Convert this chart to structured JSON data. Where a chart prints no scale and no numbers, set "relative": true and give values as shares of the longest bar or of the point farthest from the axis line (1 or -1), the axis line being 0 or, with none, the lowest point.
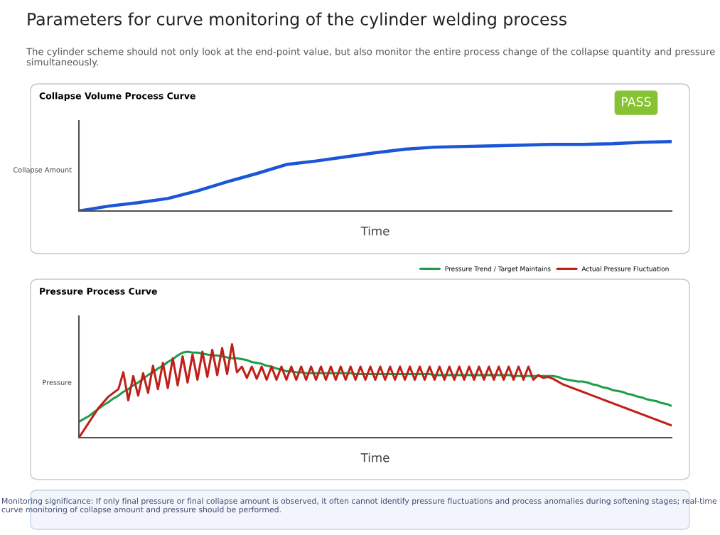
{
  "chart_data": [
    {
      "type": "line",
      "title": "Collapse Volume Process Curve",
      "xlabel": "Time",
      "ylabel": "Collapse Amount",
      "relative": true,
      "legend": false,
      "marker": "none",
      "line_style": "solid",
      "annotations": [
        "Parameters for curve monitoring of the cylinder welding process",
        "The cylinder scheme should not only look at the end-point value, but also monitor the entire process change of the collapse quantity and pressure simultaneously.",
        "PASS"
      ],
      "categories": [
        null,
        null,
        null,
        null,
        null,
        null,
        null,
        null,
        null,
        null,
        null,
        null,
        null,
        null,
        null,
        null,
        null,
        null,
        null,
        null,
        null
      ],
      "series": [
        {
          "color": "#1a56d6",
          "values": [
            0,
            0.07,
            0.12,
            0.18,
            0.29,
            0.42,
            0.54,
            0.67,
            0.72,
            0.78,
            0.84,
            0.89,
            0.92,
            0.93,
            0.94,
            0.95,
            0.96,
            0.96,
            0.97,
            0.99,
            1.0
          ]
        }
      ]
    },
    {
      "type": "line",
      "title": "Pressure Process Curve",
      "xlabel": "Time",
      "ylabel": "Pressure",
      "relative": true,
      "legend": "top right",
      "marker": "none",
      "line_style": "solid",
      "annotations": [
        "Monitoring significance: If only final pressure or final collapse amount is observed, it often cannot identify pressure fluctuations and process anomalies during softening stages; real-time curve monitoring of collapse amount and pressure should be performed."
      ],
      "categories": [
        null,
        null,
        null,
        null,
        null,
        null,
        null,
        null,
        null,
        null,
        null,
        null,
        null,
        null,
        null,
        null,
        null,
        null,
        null,
        null,
        null,
        null,
        null,
        null,
        null,
        null,
        null,
        null,
        null,
        null,
        null,
        null,
        null,
        null,
        null,
        null,
        null,
        null,
        null,
        null,
        null,
        null,
        null,
        null,
        null,
        null,
        null,
        null,
        null,
        null,
        null,
        null,
        null,
        null,
        null,
        null,
        null,
        null,
        null,
        null,
        null,
        null,
        null,
        null,
        null,
        null,
        null,
        null,
        null,
        null,
        null,
        null,
        null,
        null,
        null,
        null,
        null,
        null,
        null,
        null,
        null,
        null,
        null,
        null,
        null,
        null,
        null,
        null,
        null,
        null,
        null,
        null,
        null,
        null,
        null,
        null,
        null,
        null,
        null,
        null,
        null,
        null,
        null,
        null,
        null,
        null,
        null,
        null,
        null,
        null,
        null,
        null,
        null,
        null,
        null,
        null,
        null,
        null,
        null,
        null,
        null
      ],
      "series": [
        {
          "name": "Pressure Trend / Target Maintains",
          "color": "#1e9e4a",
          "values": [
            0.17,
            0.2,
            0.23,
            0.27,
            0.31,
            0.35,
            0.38,
            0.42,
            0.45,
            0.49,
            0.52,
            0.56,
            0.59,
            0.63,
            0.67,
            0.7,
            0.74,
            0.77,
            0.81,
            0.84,
            0.88,
            0.91,
            0.92,
            0.91,
            0.91,
            0.9,
            0.89,
            0.88,
            0.88,
            0.87,
            0.86,
            0.85,
            0.85,
            0.84,
            0.83,
            0.81,
            0.8,
            0.79,
            0.77,
            0.76,
            0.74,
            0.73,
            0.71,
            0.71,
            0.7,
            0.7,
            0.69,
            0.69,
            0.69,
            0.69,
            0.69,
            0.69,
            0.69,
            0.69,
            0.69,
            0.69,
            0.68,
            0.68,
            0.68,
            0.68,
            0.68,
            0.68,
            0.68,
            0.68,
            0.68,
            0.68,
            0.68,
            0.68,
            0.68,
            0.68,
            0.68,
            0.68,
            0.67,
            0.67,
            0.67,
            0.67,
            0.67,
            0.67,
            0.67,
            0.67,
            0.67,
            0.67,
            0.67,
            0.67,
            0.67,
            0.67,
            0.67,
            0.67,
            0.66,
            0.66,
            0.66,
            0.66,
            0.66,
            0.66,
            0.66,
            0.66,
            0.66,
            0.65,
            0.63,
            0.62,
            0.61,
            0.6,
            0.6,
            0.59,
            0.57,
            0.56,
            0.54,
            0.53,
            0.51,
            0.5,
            0.49,
            0.47,
            0.46,
            0.44,
            0.43,
            0.41,
            0.4,
            0.39,
            0.37,
            0.36,
            0.34
          ]
        },
        {
          "name": "Actual Pressure Fluctuation",
          "color": "#c0201a",
          "values": [
            0,
            0.08,
            0.16,
            0.24,
            0.32,
            0.38,
            0.44,
            0.48,
            0.52,
            0.7,
            0.4,
            0.66,
            0.45,
            0.69,
            0.48,
            0.77,
            0.52,
            0.8,
            0.53,
            0.85,
            0.56,
            0.87,
            0.59,
            0.89,
            0.62,
            0.92,
            0.65,
            0.94,
            0.67,
            0.96,
            0.68,
            1.0,
            0.7,
            0.76,
            0.64,
            0.76,
            0.63,
            0.76,
            0.62,
            0.76,
            0.62,
            0.76,
            0.62,
            0.76,
            0.62,
            0.76,
            0.62,
            0.76,
            0.62,
            0.76,
            0.62,
            0.76,
            0.62,
            0.76,
            0.62,
            0.76,
            0.62,
            0.76,
            0.62,
            0.76,
            0.62,
            0.76,
            0.62,
            0.76,
            0.62,
            0.76,
            0.62,
            0.76,
            0.62,
            0.76,
            0.62,
            0.76,
            0.62,
            0.76,
            0.62,
            0.76,
            0.62,
            0.76,
            0.62,
            0.76,
            0.62,
            0.76,
            0.62,
            0.76,
            0.62,
            0.76,
            0.62,
            0.76,
            0.62,
            0.76,
            0.62,
            0.76,
            0.62,
            0.67,
            0.64,
            0.65,
            0.63,
            0.6,
            0.57,
            0.55,
            0.53,
            0.51,
            0.49,
            0.47,
            0.45,
            0.43,
            0.41,
            0.39,
            0.37,
            0.35,
            0.33,
            0.31,
            0.29,
            0.27,
            0.25,
            0.23,
            0.21,
            0.19,
            0.17,
            0.15,
            0.13
          ]
        }
      ]
    }
  ]
}
